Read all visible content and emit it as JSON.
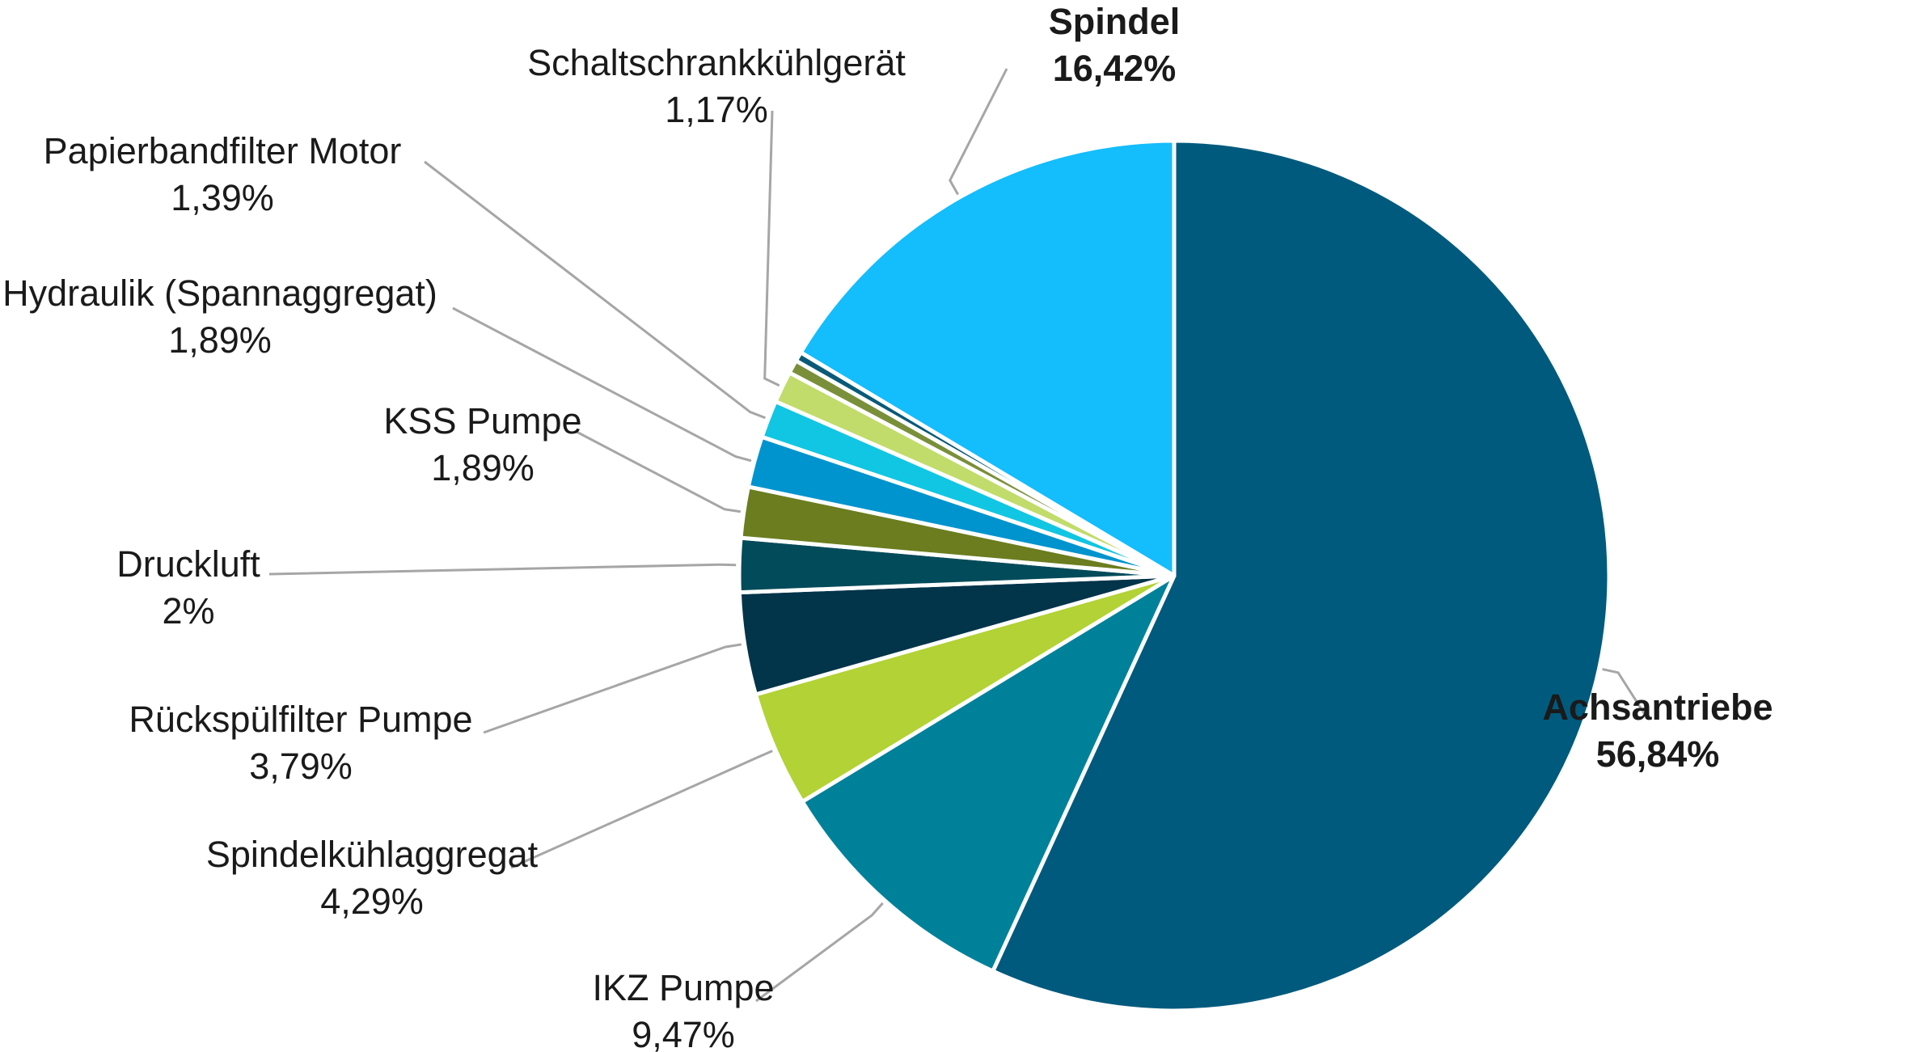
{
  "chart_data": {
    "type": "pie",
    "title": "",
    "highlight_color": "#F08A24",
    "label_color": "#1a1a1a",
    "leader_color": "#a6a6a6",
    "start_angle_deg": 0,
    "direction": "clockwise",
    "slices": [
      {
        "name": "Achsantriebe",
        "value": 56.84,
        "label": "56,84%",
        "color": "#005A7D",
        "highlight": true
      },
      {
        "name": "IKZ Pumpe",
        "value": 9.47,
        "label": "9,47%",
        "color": "#00819A",
        "highlight": false
      },
      {
        "name": "Spindelkühlaggregat",
        "value": 4.29,
        "label": "4,29%",
        "color": "#B2D235",
        "highlight": false
      },
      {
        "name": "Rückspülfilter Pumpe",
        "value": 3.79,
        "label": "3,79%",
        "color": "#02344A",
        "highlight": false
      },
      {
        "name": "Druckluft",
        "value": 2,
        "label": "2%",
        "color": "#024B5A",
        "highlight": false
      },
      {
        "name": "KSS Pumpe",
        "value": 1.89,
        "label": "1,89%",
        "color": "#6B7D1F",
        "highlight": false
      },
      {
        "name": "Hydraulik (Spannaggregat)",
        "value": 1.89,
        "label": "1,89%",
        "color": "#0094CE",
        "highlight": false
      },
      {
        "name": "Papierbandfilter Motor",
        "value": 1.39,
        "label": "1,39%",
        "color": "#11C6E2",
        "highlight": false
      },
      {
        "name": "Schaltschrankkühlgerät",
        "value": 1.17,
        "label": "1,17%",
        "color": "#C1DC6A",
        "highlight": false
      },
      {
        "name": "",
        "value": 0.5,
        "label": "",
        "color": "#7A8F3A",
        "highlight": false
      },
      {
        "name": "",
        "value": 0.35,
        "label": "",
        "color": "#0A5A78",
        "highlight": false
      },
      {
        "name": "Spindel",
        "value": 16.42,
        "label": "16,42%",
        "color": "#14BDFB",
        "highlight": true
      }
    ]
  }
}
